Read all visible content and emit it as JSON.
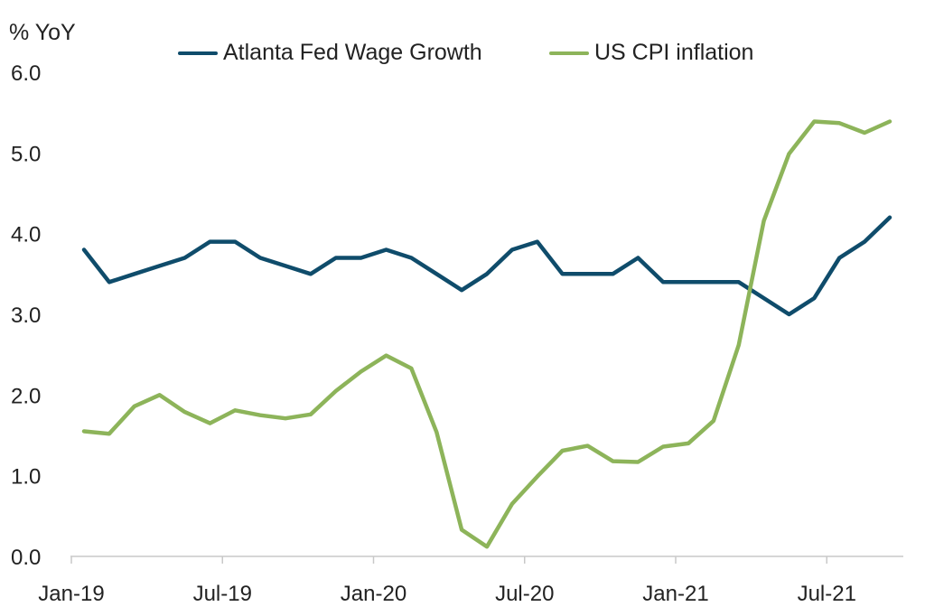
{
  "chart_data": {
    "type": "line",
    "ylabel": "% YoY",
    "ylim": [
      0,
      6
    ],
    "yticks": [
      "0.0",
      "1.0",
      "2.0",
      "3.0",
      "4.0",
      "5.0",
      "6.0"
    ],
    "x": [
      "2019-01",
      "2019-02",
      "2019-03",
      "2019-04",
      "2019-05",
      "2019-06",
      "2019-07",
      "2019-08",
      "2019-09",
      "2019-10",
      "2019-11",
      "2019-12",
      "2020-01",
      "2020-02",
      "2020-03",
      "2020-04",
      "2020-05",
      "2020-06",
      "2020-07",
      "2020-08",
      "2020-09",
      "2020-10",
      "2020-11",
      "2020-12",
      "2021-01",
      "2021-02",
      "2021-03",
      "2021-04",
      "2021-05",
      "2021-06",
      "2021-07",
      "2021-08",
      "2021-09"
    ],
    "xtick_labels": [
      {
        "label": "Jan-19",
        "x": "2019-01"
      },
      {
        "label": "Jul-19",
        "x": "2019-07"
      },
      {
        "label": "Jan-20",
        "x": "2020-01"
      },
      {
        "label": "Jul-20",
        "x": "2020-07"
      },
      {
        "label": "Jan-21",
        "x": "2021-01"
      },
      {
        "label": "Jul-21",
        "x": "2021-07"
      }
    ],
    "series": [
      {
        "name": "Atlanta Fed Wage Growth",
        "color": "#0f4c6b",
        "values": [
          3.8,
          3.4,
          3.5,
          3.6,
          3.7,
          3.9,
          3.9,
          3.7,
          3.6,
          3.5,
          3.7,
          3.7,
          3.8,
          3.7,
          3.5,
          3.3,
          3.5,
          3.8,
          3.9,
          3.5,
          3.5,
          3.5,
          3.7,
          3.4,
          3.4,
          3.4,
          3.4,
          3.2,
          3.0,
          3.2,
          3.7,
          3.9,
          4.2
        ]
      },
      {
        "name": "US CPI inflation",
        "color": "#8db45a",
        "values": [
          1.55,
          1.52,
          1.86,
          2.0,
          1.79,
          1.65,
          1.81,
          1.75,
          1.71,
          1.76,
          2.05,
          2.29,
          2.49,
          2.33,
          1.54,
          0.33,
          0.12,
          0.65,
          0.99,
          1.31,
          1.37,
          1.18,
          1.17,
          1.36,
          1.4,
          1.68,
          2.62,
          4.16,
          4.99,
          5.39,
          5.37,
          5.25,
          5.39
        ]
      }
    ],
    "grid": false,
    "legend": "top"
  }
}
